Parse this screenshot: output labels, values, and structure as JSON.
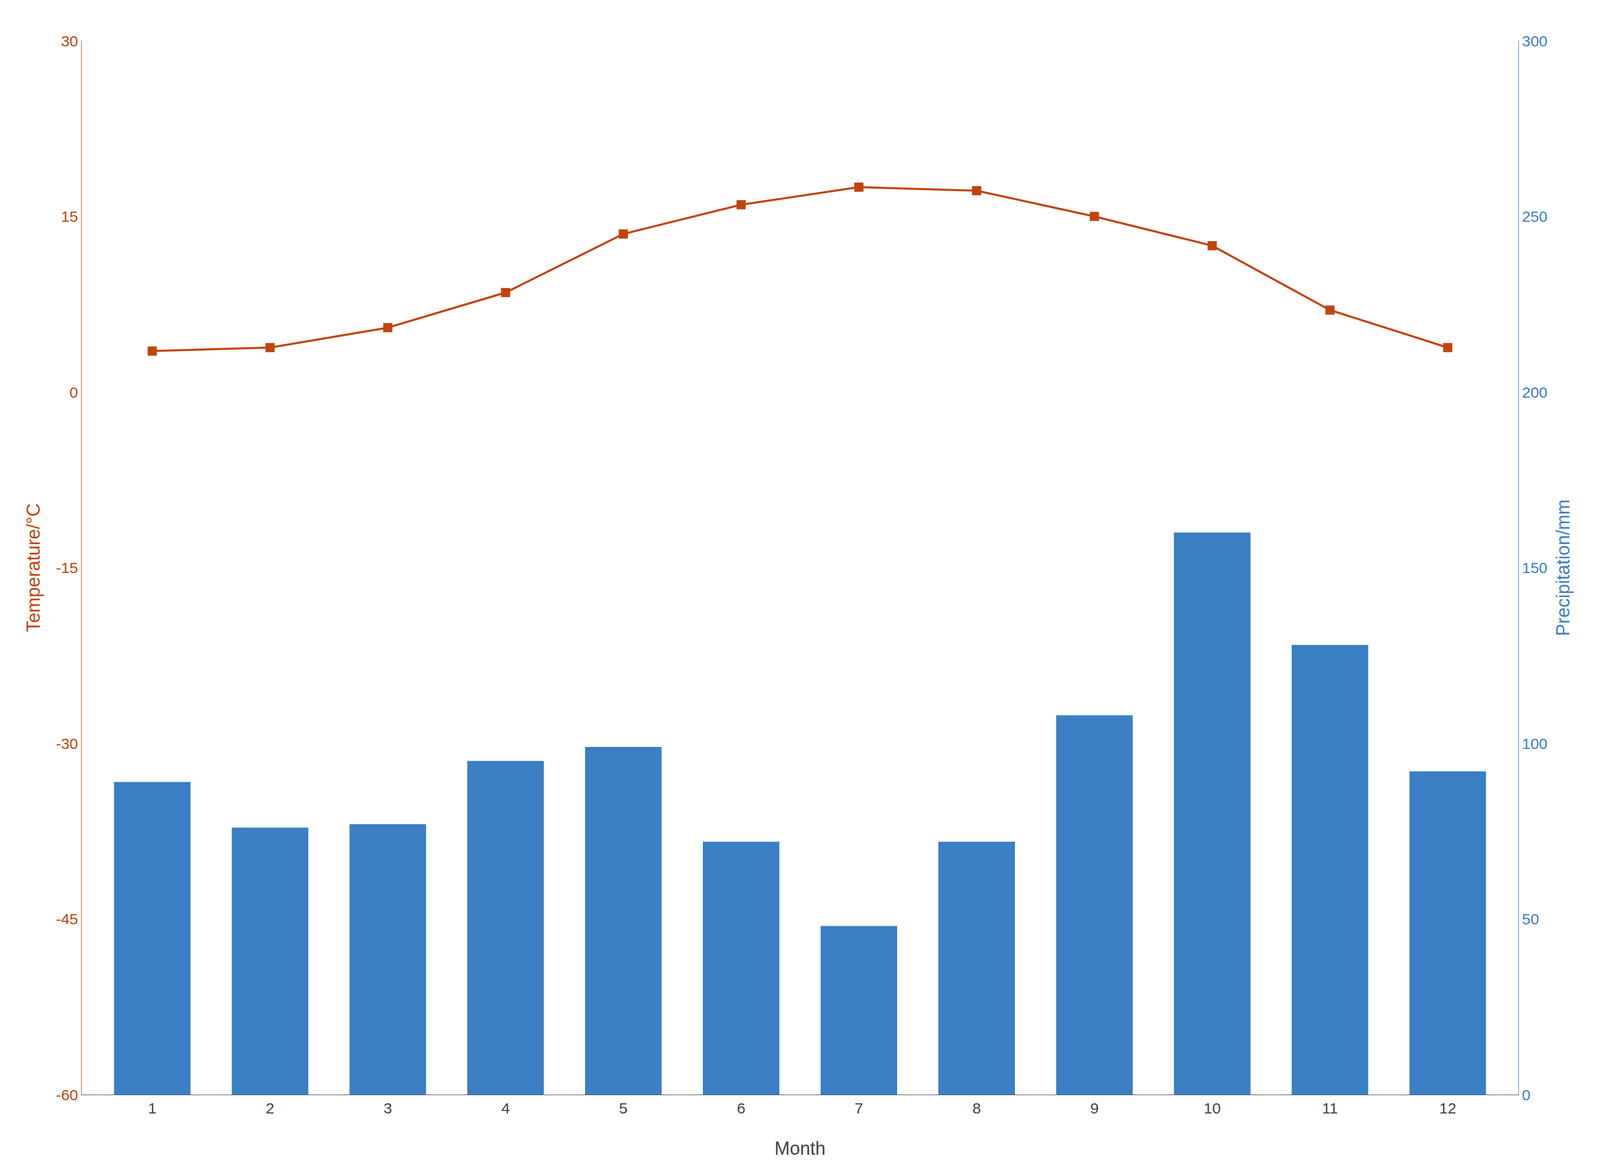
{
  "chart_data": {
    "type": "bar",
    "xlabel": "Month",
    "ylabel": "Temperature/°C",
    "y2label": "Precipitation/mm",
    "x": [
      1,
      2,
      3,
      4,
      5,
      6,
      7,
      8,
      9,
      10,
      11,
      12
    ],
    "xlim": [
      0.4,
      12.6
    ],
    "xticks": [
      1,
      2,
      3,
      4,
      5,
      6,
      7,
      8,
      9,
      10,
      11,
      12
    ],
    "ylim": [
      -60,
      30
    ],
    "yticks": [
      -60,
      -45,
      -30,
      -15,
      0,
      15,
      30
    ],
    "y2lim": [
      0,
      300
    ],
    "y2ticks": [
      0,
      50,
      100,
      150,
      200,
      250,
      300
    ],
    "grid": false,
    "series": [
      {
        "type": "bar",
        "axis": "y2",
        "color": "#3B7FC4",
        "values": [
          89,
          76,
          77,
          95,
          99,
          72,
          48,
          72,
          108,
          160,
          128,
          92
        ]
      },
      {
        "type": "line",
        "color": "#C1440E",
        "marker": "square",
        "values": [
          3.5,
          3.8,
          5.5,
          8.5,
          13.5,
          16.0,
          17.5,
          17.2,
          15.0,
          12.5,
          7.0,
          3.8
        ]
      }
    ]
  }
}
